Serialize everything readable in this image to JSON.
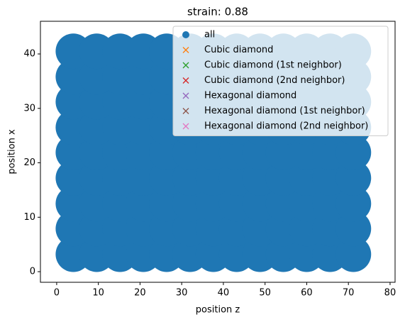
{
  "chart_data": {
    "type": "scatter",
    "title": "strain: 0.88",
    "x_label": "position z",
    "y_label": "position x",
    "xlim": [
      -3.9,
      81.2
    ],
    "ylim": [
      -1.95,
      46.0
    ],
    "xticks": [
      0,
      10,
      20,
      30,
      40,
      50,
      60,
      70,
      80
    ],
    "yticks": [
      0,
      10,
      20,
      30,
      40
    ],
    "legend": "upper right",
    "series": [
      {
        "name": "all",
        "color": "#1f77b4",
        "marker": "o",
        "x": [
          4,
          9.6,
          15.2,
          20.8,
          26.4,
          32,
          37.6,
          43.2,
          48.8,
          54.4,
          60,
          65.6,
          71.2,
          4,
          9.6,
          15.2,
          20.8,
          26.4,
          32,
          37.6,
          43.2,
          48.8,
          54.4,
          60,
          65.6,
          71.2,
          4,
          9.6,
          15.2,
          20.8,
          26.4,
          32,
          37.6,
          43.2,
          48.8,
          54.4,
          60,
          65.6,
          71.2,
          4,
          9.6,
          15.2,
          20.8,
          26.4,
          32,
          37.6,
          43.2,
          48.8,
          54.4,
          60,
          65.6,
          71.2,
          4,
          9.6,
          15.2,
          20.8,
          26.4,
          32,
          37.6,
          43.2,
          48.8,
          54.4,
          60,
          65.6,
          71.2,
          4,
          9.6,
          15.2,
          20.8,
          26.4,
          32,
          37.6,
          43.2,
          48.8,
          54.4,
          60,
          65.6,
          71.2,
          4,
          9.6,
          15.2,
          20.8,
          26.4,
          32,
          37.6,
          43.2,
          48.8,
          54.4,
          60,
          65.6,
          71.2,
          4,
          9.6,
          15.2,
          20.8,
          26.4,
          32,
          37.6,
          43.2,
          48.8,
          54.4,
          60,
          65.6,
          71.2,
          4,
          9.6,
          15.2,
          20.8,
          26.4,
          32,
          37.6,
          43.2,
          48.8,
          54.4,
          60,
          65.6,
          71.2
        ],
        "values": [
          3.2,
          3.2,
          3.2,
          3.2,
          3.2,
          3.2,
          3.2,
          3.2,
          3.2,
          3.2,
          3.2,
          3.2,
          3.2,
          7.9,
          7.9,
          7.9,
          7.9,
          7.9,
          7.9,
          7.9,
          7.9,
          7.9,
          7.9,
          7.9,
          7.9,
          7.9,
          12.5,
          12.5,
          12.5,
          12.5,
          12.5,
          12.5,
          12.5,
          12.5,
          12.5,
          12.5,
          12.5,
          12.5,
          12.5,
          17.2,
          17.2,
          17.2,
          17.2,
          17.2,
          17.2,
          17.2,
          17.2,
          17.2,
          17.2,
          17.2,
          17.2,
          17.2,
          21.9,
          21.9,
          21.9,
          21.9,
          21.9,
          21.9,
          21.9,
          21.9,
          21.9,
          21.9,
          21.9,
          21.9,
          21.9,
          26.5,
          26.5,
          26.5,
          26.5,
          26.5,
          26.5,
          26.5,
          26.5,
          26.5,
          26.5,
          26.5,
          26.5,
          26.5,
          31.2,
          31.2,
          31.2,
          31.2,
          31.2,
          31.2,
          31.2,
          31.2,
          31.2,
          31.2,
          31.2,
          31.2,
          31.2,
          35.8,
          35.8,
          35.8,
          35.8,
          35.8,
          35.8,
          35.8,
          35.8,
          35.8,
          35.8,
          35.8,
          35.8,
          35.8,
          40.5,
          40.5,
          40.5,
          40.5,
          40.5,
          40.5,
          40.5,
          40.5,
          40.5,
          40.5,
          40.5,
          40.5,
          40.5
        ]
      },
      {
        "name": "Cubic diamond",
        "color": "#ff7f0e",
        "marker": "x",
        "x": [],
        "values": []
      },
      {
        "name": "Cubic diamond (1st neighbor)",
        "color": "#2ca02c",
        "marker": "x",
        "x": [],
        "values": []
      },
      {
        "name": "Cubic diamond (2nd neighbor)",
        "color": "#d62728",
        "marker": "x",
        "x": [],
        "values": []
      },
      {
        "name": "Hexagonal diamond",
        "color": "#9467bd",
        "marker": "x",
        "x": [],
        "values": []
      },
      {
        "name": "Hexagonal diamond (1st neighbor)",
        "color": "#8c564b",
        "marker": "x",
        "x": [],
        "values": []
      },
      {
        "name": "Hexagonal diamond (2nd neighbor)",
        "color": "#e377c2",
        "marker": "x",
        "x": [],
        "values": []
      }
    ]
  }
}
